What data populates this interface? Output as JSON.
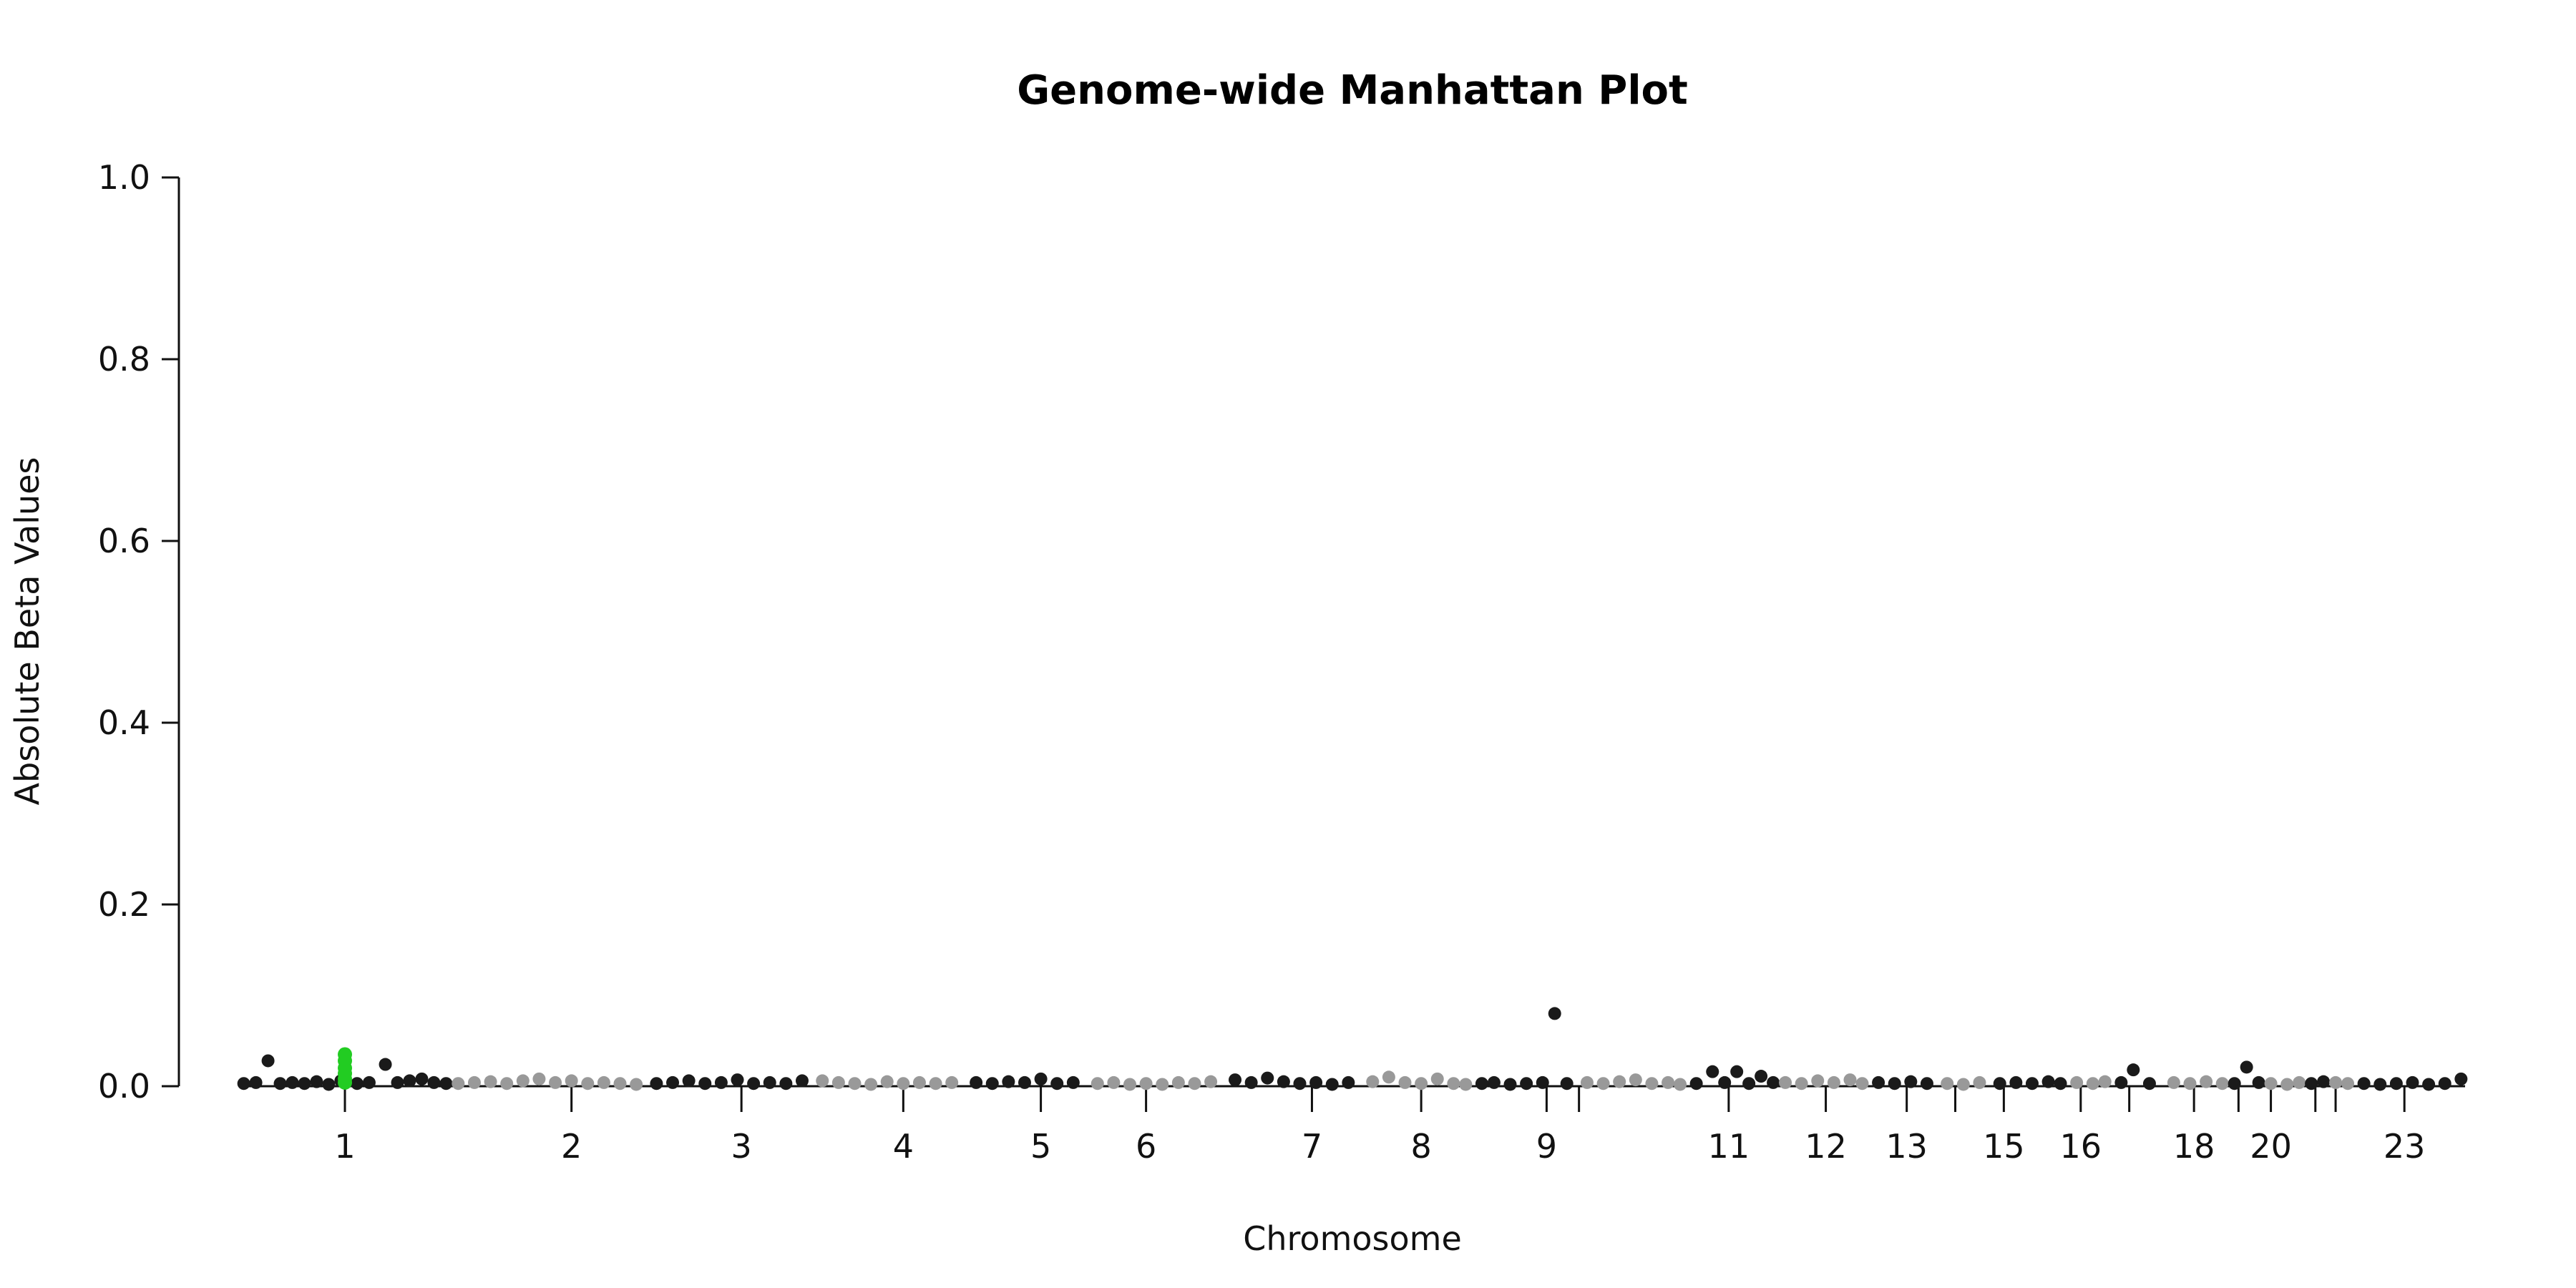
{
  "chart_data": {
    "type": "scatter",
    "title": "Genome-wide Manhattan Plot",
    "xlabel": "Chromosome",
    "ylabel": "Absolute Beta Values",
    "ylim": [
      0,
      1
    ],
    "yticks": [
      "0.0",
      "0.2",
      "0.4",
      "0.6",
      "0.8",
      "1.0"
    ],
    "grid": false,
    "colors": {
      "odd": "#1a1a1a",
      "even": "#999999",
      "highlight": "#22cc22"
    },
    "chromosomes": [
      {
        "label": "1",
        "tick": true,
        "start": 0,
        "end": 5.2,
        "tick_at": 2.6,
        "color": "odd",
        "points": [
          [
            0.1,
            0.003
          ],
          [
            0.4,
            0.004
          ],
          [
            0.7,
            0.028
          ],
          [
            1.0,
            0.003
          ],
          [
            1.3,
            0.004
          ],
          [
            1.6,
            0.003
          ],
          [
            1.9,
            0.005
          ],
          [
            2.2,
            0.002
          ],
          [
            2.5,
            0.006
          ],
          [
            2.9,
            0.003
          ],
          [
            3.2,
            0.004
          ],
          [
            3.6,
            0.024
          ],
          [
            3.9,
            0.004
          ],
          [
            4.2,
            0.006
          ],
          [
            4.5,
            0.008
          ],
          [
            4.8,
            0.004
          ],
          [
            5.1,
            0.003
          ]
        ]
      },
      {
        "label": "2",
        "tick": true,
        "start": 5.2,
        "end": 10.1,
        "tick_at": 8.2,
        "color": "even",
        "points": [
          [
            5.4,
            0.003
          ],
          [
            5.8,
            0.004
          ],
          [
            6.2,
            0.005
          ],
          [
            6.6,
            0.003
          ],
          [
            7.0,
            0.006
          ],
          [
            7.4,
            0.008
          ],
          [
            7.8,
            0.004
          ],
          [
            8.2,
            0.006
          ],
          [
            8.6,
            0.003
          ],
          [
            9.0,
            0.004
          ],
          [
            9.4,
            0.003
          ],
          [
            9.8,
            0.002
          ]
        ]
      },
      {
        "label": "3",
        "tick": true,
        "start": 10.1,
        "end": 14.2,
        "tick_at": 12.4,
        "color": "odd",
        "points": [
          [
            10.3,
            0.003
          ],
          [
            10.7,
            0.004
          ],
          [
            11.1,
            0.006
          ],
          [
            11.5,
            0.003
          ],
          [
            11.9,
            0.004
          ],
          [
            12.3,
            0.007
          ],
          [
            12.7,
            0.003
          ],
          [
            13.1,
            0.004
          ],
          [
            13.5,
            0.003
          ],
          [
            13.9,
            0.006
          ]
        ]
      },
      {
        "label": "4",
        "tick": true,
        "start": 14.2,
        "end": 18.0,
        "tick_at": 16.4,
        "color": "even",
        "points": [
          [
            14.4,
            0.006
          ],
          [
            14.8,
            0.004
          ],
          [
            15.2,
            0.003
          ],
          [
            15.6,
            0.002
          ],
          [
            16.0,
            0.005
          ],
          [
            16.4,
            0.003
          ],
          [
            16.8,
            0.004
          ],
          [
            17.2,
            0.003
          ],
          [
            17.6,
            0.004
          ]
        ]
      },
      {
        "label": "5",
        "tick": true,
        "start": 18.0,
        "end": 21.0,
        "tick_at": 19.8,
        "color": "odd",
        "points": [
          [
            18.2,
            0.004
          ],
          [
            18.6,
            0.003
          ],
          [
            19.0,
            0.005
          ],
          [
            19.4,
            0.004
          ],
          [
            19.8,
            0.008
          ],
          [
            20.2,
            0.003
          ],
          [
            20.6,
            0.004
          ]
        ]
      },
      {
        "label": "6",
        "tick": true,
        "start": 21.0,
        "end": 24.4,
        "tick_at": 22.4,
        "color": "even",
        "points": [
          [
            21.2,
            0.003
          ],
          [
            21.6,
            0.004
          ],
          [
            22.0,
            0.002
          ],
          [
            22.4,
            0.003
          ],
          [
            22.8,
            0.002
          ],
          [
            23.2,
            0.004
          ],
          [
            23.6,
            0.003
          ],
          [
            24.0,
            0.005
          ]
        ]
      },
      {
        "label": "7",
        "tick": true,
        "start": 24.4,
        "end": 27.8,
        "tick_at": 26.5,
        "color": "odd",
        "points": [
          [
            24.6,
            0.007
          ],
          [
            25.0,
            0.004
          ],
          [
            25.4,
            0.009
          ],
          [
            25.8,
            0.005
          ],
          [
            26.2,
            0.003
          ],
          [
            26.6,
            0.004
          ],
          [
            27.0,
            0.002
          ],
          [
            27.4,
            0.004
          ]
        ]
      },
      {
        "label": "8",
        "tick": true,
        "start": 27.8,
        "end": 30.5,
        "tick_at": 29.2,
        "color": "even",
        "points": [
          [
            28.0,
            0.005
          ],
          [
            28.4,
            0.01
          ],
          [
            28.8,
            0.004
          ],
          [
            29.2,
            0.003
          ],
          [
            29.6,
            0.008
          ],
          [
            30.0,
            0.003
          ],
          [
            30.3,
            0.002
          ]
        ]
      },
      {
        "label": "9",
        "tick": true,
        "start": 30.5,
        "end": 33.1,
        "tick_at": 32.3,
        "color": "odd",
        "points": [
          [
            30.7,
            0.003
          ],
          [
            31.0,
            0.004
          ],
          [
            31.4,
            0.002
          ],
          [
            31.8,
            0.003
          ],
          [
            32.2,
            0.004
          ],
          [
            32.5,
            0.08
          ],
          [
            32.8,
            0.003
          ]
        ]
      },
      {
        "label": "",
        "tick": true,
        "start": 33.1,
        "end": 35.8,
        "tick_at": 33.1,
        "color": "even",
        "points": [
          [
            33.3,
            0.004
          ],
          [
            33.7,
            0.003
          ],
          [
            34.1,
            0.005
          ],
          [
            34.5,
            0.007
          ],
          [
            34.9,
            0.003
          ],
          [
            35.3,
            0.004
          ],
          [
            35.6,
            0.002
          ]
        ]
      },
      {
        "label": "11",
        "tick": true,
        "start": 35.8,
        "end": 38.0,
        "tick_at": 36.8,
        "color": "odd",
        "points": [
          [
            36.0,
            0.003
          ],
          [
            36.4,
            0.016
          ],
          [
            36.7,
            0.004
          ],
          [
            37.0,
            0.016
          ],
          [
            37.3,
            0.003
          ],
          [
            37.6,
            0.011
          ],
          [
            37.9,
            0.004
          ]
        ]
      },
      {
        "label": "12",
        "tick": true,
        "start": 38.0,
        "end": 40.3,
        "tick_at": 39.2,
        "color": "even",
        "points": [
          [
            38.2,
            0.004
          ],
          [
            38.6,
            0.003
          ],
          [
            39.0,
            0.006
          ],
          [
            39.4,
            0.004
          ],
          [
            39.8,
            0.007
          ],
          [
            40.1,
            0.003
          ]
        ]
      },
      {
        "label": "13",
        "tick": true,
        "start": 40.3,
        "end": 42.0,
        "tick_at": 41.2,
        "color": "odd",
        "points": [
          [
            40.5,
            0.004
          ],
          [
            40.9,
            0.003
          ],
          [
            41.3,
            0.005
          ],
          [
            41.7,
            0.003
          ]
        ]
      },
      {
        "label": "",
        "tick": true,
        "start": 42.0,
        "end": 43.3,
        "tick_at": 42.4,
        "color": "even",
        "points": [
          [
            42.2,
            0.003
          ],
          [
            42.6,
            0.002
          ],
          [
            43.0,
            0.004
          ]
        ]
      },
      {
        "label": "15",
        "tick": true,
        "start": 43.3,
        "end": 45.2,
        "tick_at": 43.6,
        "color": "odd",
        "points": [
          [
            43.5,
            0.003
          ],
          [
            43.9,
            0.004
          ],
          [
            44.3,
            0.003
          ],
          [
            44.7,
            0.005
          ],
          [
            45.0,
            0.003
          ]
        ]
      },
      {
        "label": "16",
        "tick": true,
        "start": 45.2,
        "end": 46.3,
        "tick_at": 45.5,
        "color": "even",
        "points": [
          [
            45.4,
            0.004
          ],
          [
            45.8,
            0.003
          ],
          [
            46.1,
            0.005
          ]
        ]
      },
      {
        "label": "",
        "tick": true,
        "start": 46.3,
        "end": 47.6,
        "tick_at": 46.7,
        "color": "odd",
        "points": [
          [
            46.5,
            0.004
          ],
          [
            46.8,
            0.018
          ],
          [
            47.2,
            0.003
          ]
        ]
      },
      {
        "label": "18",
        "tick": true,
        "start": 47.6,
        "end": 49.2,
        "tick_at": 48.3,
        "color": "even",
        "points": [
          [
            47.8,
            0.004
          ],
          [
            48.2,
            0.003
          ],
          [
            48.6,
            0.005
          ],
          [
            49.0,
            0.003
          ]
        ]
      },
      {
        "label": "",
        "tick": true,
        "start": 49.2,
        "end": 50.0,
        "tick_at": 49.4,
        "color": "odd",
        "points": [
          [
            49.3,
            0.003
          ],
          [
            49.6,
            0.021
          ],
          [
            49.9,
            0.004
          ]
        ]
      },
      {
        "label": "20",
        "tick": true,
        "start": 50.0,
        "end": 51.1,
        "tick_at": 50.2,
        "color": "even",
        "points": [
          [
            50.2,
            0.003
          ],
          [
            50.6,
            0.002
          ],
          [
            50.9,
            0.004
          ]
        ]
      },
      {
        "label": "",
        "tick": true,
        "start": 51.1,
        "end": 51.7,
        "tick_at": 51.3,
        "color": "odd",
        "points": [
          [
            51.2,
            0.003
          ],
          [
            51.5,
            0.005
          ]
        ]
      },
      {
        "label": "",
        "tick": true,
        "start": 51.7,
        "end": 52.3,
        "tick_at": 51.8,
        "color": "even",
        "points": [
          [
            51.8,
            0.004
          ],
          [
            52.1,
            0.003
          ]
        ]
      },
      {
        "label": "23",
        "tick": true,
        "start": 52.3,
        "end": 55.0,
        "tick_at": 53.5,
        "color": "odd",
        "points": [
          [
            52.5,
            0.003
          ],
          [
            52.9,
            0.002
          ],
          [
            53.3,
            0.003
          ],
          [
            53.7,
            0.004
          ],
          [
            54.1,
            0.002
          ],
          [
            54.5,
            0.003
          ],
          [
            54.9,
            0.008
          ]
        ]
      }
    ],
    "highlight_points": [
      [
        2.6,
        0.035
      ],
      [
        2.6,
        0.028
      ],
      [
        2.6,
        0.02
      ],
      [
        2.6,
        0.014
      ],
      [
        2.6,
        0.008
      ],
      [
        2.6,
        0.004
      ]
    ]
  }
}
